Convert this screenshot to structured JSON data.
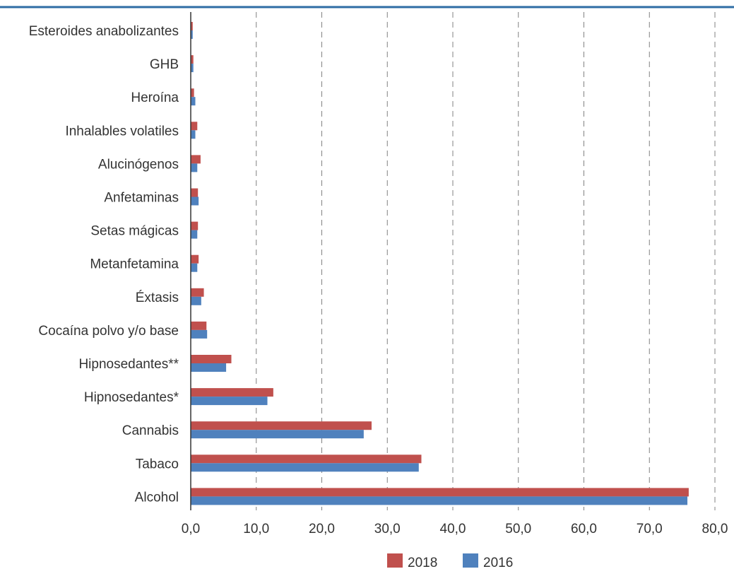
{
  "chart_data": {
    "type": "bar",
    "orientation": "horizontal",
    "categories": [
      "Esteroides anabolizantes",
      "GHB",
      "Heroína",
      "Inhalables volatiles",
      "Alucinógenos",
      "Anfetaminas",
      "Setas mágicas",
      "Metanfetamina",
      "Éxtasis",
      "Cocaína polvo y/o base",
      "Hipnosedantes**",
      "Hipnosedantes*",
      "Cannabis",
      "Tabaco",
      "Alcohol"
    ],
    "series": [
      {
        "name": "2018",
        "color": "#c0504d",
        "values": [
          0.3,
          0.4,
          0.5,
          1.0,
          1.5,
          1.1,
          1.1,
          1.2,
          2.0,
          2.4,
          6.2,
          12.6,
          27.6,
          35.2,
          76.0
        ]
      },
      {
        "name": "2016",
        "color": "#4f81bd",
        "values": [
          0.3,
          0.4,
          0.7,
          0.7,
          1.0,
          1.2,
          1.0,
          1.0,
          1.6,
          2.5,
          5.4,
          11.7,
          26.4,
          34.8,
          75.8
        ]
      }
    ],
    "xlim": [
      0,
      80
    ],
    "xticks": [
      "0,0",
      "10,0",
      "20,0",
      "30,0",
      "40,0",
      "50,0",
      "60,0",
      "70,0",
      "80,0"
    ],
    "xlabel": "",
    "ylabel": "",
    "title": "",
    "grid": "vertical dashed",
    "legend": {
      "position": "bottom",
      "items": [
        "2018",
        "2016"
      ]
    }
  },
  "colors": {
    "top_rule": "#2e6da4",
    "grid": "#808080",
    "axis": "#333333"
  }
}
